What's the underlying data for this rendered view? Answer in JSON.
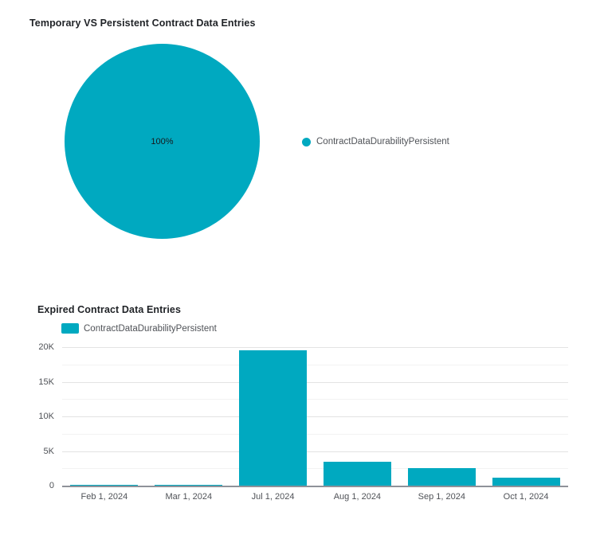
{
  "colors": {
    "series": "#00a9c0",
    "axis": "#8f9299",
    "grid_major": "#e3e3e3",
    "grid_minor": "#f2f2f2",
    "title_text": "#1f2226",
    "label_text": "#4f5257",
    "pie_label_text": "#17191c"
  },
  "chart_data": [
    {
      "type": "pie",
      "title": "Temporary VS Persistent Contract Data Entries",
      "series": [
        {
          "name": "ContractDataDurabilityPersistent",
          "value": 100
        }
      ],
      "unit": "%",
      "slice_labels": [
        "100%"
      ],
      "legend_position": "right",
      "color": "#00a9c0"
    },
    {
      "type": "bar",
      "title": "Expired Contract Data Entries",
      "categories": [
        "Feb 1, 2024",
        "Mar 1, 2024",
        "Jul 1, 2024",
        "Aug 1, 2024",
        "Sep 1, 2024",
        "Oct 1, 2024"
      ],
      "series": [
        {
          "name": "ContractDataDurabilityPersistent",
          "values": [
            100,
            100,
            19500,
            3500,
            2500,
            1100
          ]
        }
      ],
      "ylim": [
        0,
        20000
      ],
      "yticks": [
        {
          "value": 0,
          "label": "0"
        },
        {
          "value": 5000,
          "label": "5K"
        },
        {
          "value": 10000,
          "label": "10K"
        },
        {
          "value": 15000,
          "label": "15K"
        },
        {
          "value": 20000,
          "label": "20K"
        }
      ],
      "minor_gridlines": [
        2500,
        7500,
        12500,
        17500
      ],
      "grid": true,
      "legend_position": "top-left",
      "bar_color": "#00a9c0"
    }
  ]
}
